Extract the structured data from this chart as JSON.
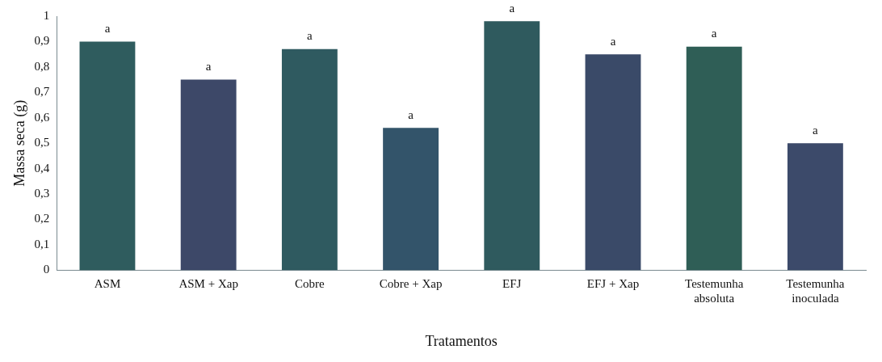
{
  "chart_data": {
    "type": "bar",
    "xlabel": "Tratamentos",
    "ylabel": "Massa seca (g)",
    "categories": [
      "ASM",
      "ASM + Xap",
      "Cobre",
      "Cobre + Xap",
      "EFJ",
      "EFJ + Xap",
      "Testemunha absoluta",
      "Testemunha inoculada"
    ],
    "values": [
      0.9,
      0.75,
      0.87,
      0.56,
      0.98,
      0.85,
      0.88,
      0.5
    ],
    "colors": [
      "#2f5c5e",
      "#3d4868",
      "#2f5a60",
      "#33546a",
      "#2f5a5e",
      "#3a4a68",
      "#2f5e56",
      "#3c4a6a"
    ],
    "value_labels": [
      "a",
      "a",
      "a",
      "a",
      "a",
      "a",
      "a",
      "a"
    ],
    "ylim": [
      0,
      1
    ],
    "yticks": [
      0,
      {
        "value": 0.1,
        "label": "0,1"
      },
      {
        "value": 0.2,
        "label": "0,2"
      },
      {
        "value": 0.3,
        "label": "0,3"
      },
      {
        "value": 0.4,
        "label": "0,4"
      },
      {
        "value": 0.5,
        "label": "0,5"
      },
      {
        "value": 0.6,
        "label": "0,6"
      },
      {
        "value": 0.7,
        "label": "0,7"
      },
      {
        "value": 0.8,
        "label": "0,8"
      },
      {
        "value": 0.9,
        "label": "0,9"
      },
      1
    ],
    "grid": false,
    "legend": false
  }
}
